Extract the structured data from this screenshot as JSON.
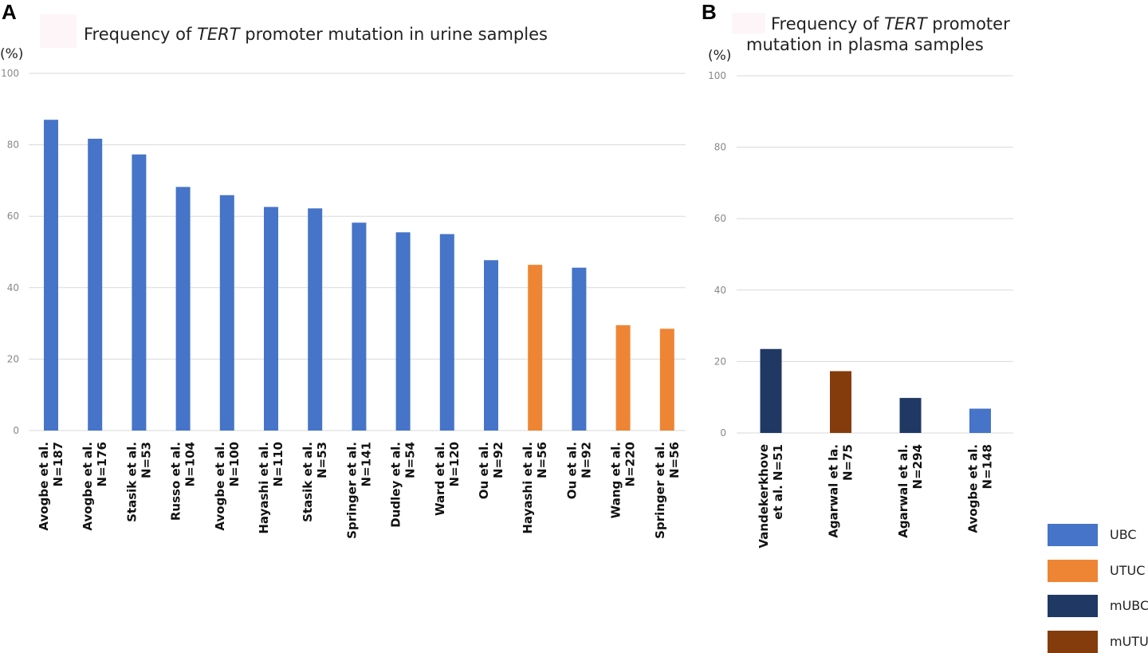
{
  "colors": {
    "UBC": "#4674c8",
    "UTUC": "#ee8534",
    "mUBC": "#1f3864",
    "mUTUC": "#843c0c",
    "grid": "#d9d9d9",
    "axis_text": "#888888"
  },
  "panel_a": {
    "letter": "A",
    "title_pre": "Frequency of ",
    "title_em": "TERT",
    "title_post": " promoter mutation in urine samples",
    "unit": "(%)"
  },
  "panel_b": {
    "letter": "B",
    "title_pre": "Frequency of ",
    "title_em": "TERT",
    "title_post": " promoter",
    "title_line2": "mutation in plasma samples",
    "unit": "(%)"
  },
  "legend": [
    {
      "label": "UBC",
      "color_key": "UBC"
    },
    {
      "label": "UTUC",
      "color_key": "UTUC"
    },
    {
      "label": "mUBC",
      "color_key": "mUBC"
    },
    {
      "label": "mUTUC",
      "color_key": "mUTUC"
    }
  ],
  "chart_data": [
    {
      "type": "bar",
      "title": "Frequency of TERT promoter mutation in urine samples",
      "ylabel": "(%)",
      "ylim": [
        0,
        100
      ],
      "yticks": [
        0,
        20,
        40,
        60,
        80,
        100
      ],
      "grid": true,
      "categories": [
        {
          "line1": "Avogbe et al.",
          "line2": "N=187"
        },
        {
          "line1": "Avogbe et al.",
          "line2": "N=176"
        },
        {
          "line1": "Stasik et al.",
          "line2": "N=53"
        },
        {
          "line1": "Russo et al.",
          "line2": "N=104"
        },
        {
          "line1": "Avogbe et al.",
          "line2": "N=100"
        },
        {
          "line1": "Hayashi et al.",
          "line2": "N=110"
        },
        {
          "line1": "Stasik et al.",
          "line2": "N=53"
        },
        {
          "line1": "Springer et al.",
          "line2": "N=141"
        },
        {
          "line1": "Dudley et al.",
          "line2": "N=54"
        },
        {
          "line1": "Ward et al.",
          "line2": "N=120"
        },
        {
          "line1": "Ou et al.",
          "line2": "N=92"
        },
        {
          "line1": "Hayashi et al.",
          "line2": "N=56"
        },
        {
          "line1": "Ou et al.",
          "line2": "N=92"
        },
        {
          "line1": "Wang et al.",
          "line2": "N=220"
        },
        {
          "line1": "Springer et al.",
          "line2": "N=56"
        }
      ],
      "values": [
        87,
        81.7,
        77.3,
        68.2,
        65.9,
        62.6,
        62.2,
        58.2,
        55.5,
        55,
        47.7,
        46.4,
        45.6,
        29.5,
        28.5
      ],
      "groups": [
        "UBC",
        "UBC",
        "UBC",
        "UBC",
        "UBC",
        "UBC",
        "UBC",
        "UBC",
        "UBC",
        "UBC",
        "UBC",
        "UTUC",
        "UBC",
        "UTUC",
        "UTUC"
      ]
    },
    {
      "type": "bar",
      "title": "Frequency of TERT promoter mutation in plasma samples",
      "ylabel": "(%)",
      "ylim": [
        0,
        100
      ],
      "yticks": [
        0,
        20,
        40,
        60,
        80,
        100
      ],
      "grid": true,
      "categories": [
        {
          "line1": "Vandekerkhove",
          "line2": "et al. N=51"
        },
        {
          "line1": "Agarwal et la.",
          "line2": "N=75"
        },
        {
          "line1": "Agarwal et al.",
          "line2": "N=294"
        },
        {
          "line1": "Avogbe et al.",
          "line2": "N=148"
        }
      ],
      "values": [
        23.5,
        17.3,
        9.8,
        6.8
      ],
      "groups": [
        "mUBC",
        "mUTUC",
        "mUBC",
        "UBC"
      ]
    }
  ]
}
